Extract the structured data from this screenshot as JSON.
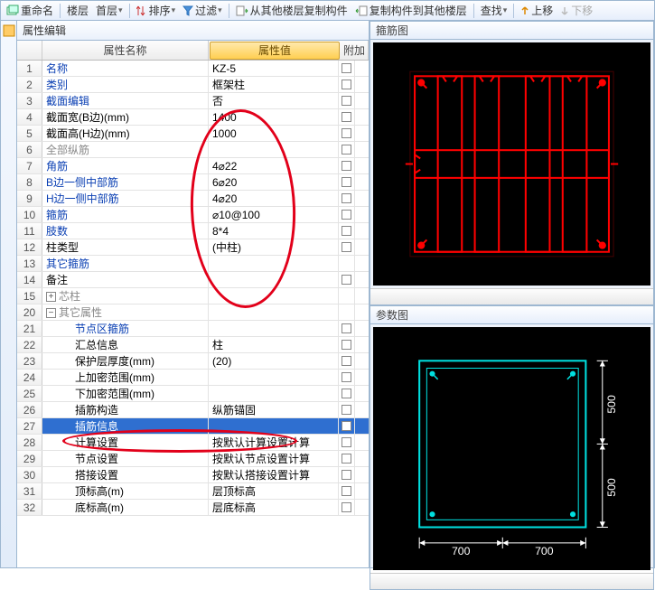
{
  "toolbar": {
    "rename": "重命名",
    "layer": "楼层",
    "firstfloor": "首层",
    "sort": "排序",
    "filter": "过滤",
    "copyfrom": "从其他楼层复制构件",
    "copyto": "复制构件到其他楼层",
    "find": "查找",
    "up": "上移",
    "down": "下移"
  },
  "pane_title": "属性编辑",
  "headers": {
    "name": "属性名称",
    "value": "属性值",
    "extra": "附加"
  },
  "rows": [
    {
      "n": "1",
      "name": "名称",
      "val": "KZ-5",
      "link": true,
      "chk": true
    },
    {
      "n": "2",
      "name": "类别",
      "val": "框架柱",
      "link": true,
      "chk": true
    },
    {
      "n": "3",
      "name": "截面编辑",
      "val": "否",
      "link": true,
      "chk": true
    },
    {
      "n": "4",
      "name": "截面宽(B边)(mm)",
      "val": "1400",
      "chk": true
    },
    {
      "n": "5",
      "name": "截面高(H边)(mm)",
      "val": "1000",
      "chk": true
    },
    {
      "n": "6",
      "name": "全部纵筋",
      "val": "",
      "gray": true,
      "chk": true
    },
    {
      "n": "7",
      "name": "角筋",
      "val": "4⌀22",
      "link": true,
      "chk": true
    },
    {
      "n": "8",
      "name": "B边一侧中部筋",
      "val": "6⌀20",
      "link": true,
      "chk": true
    },
    {
      "n": "9",
      "name": "H边一侧中部筋",
      "val": "4⌀20",
      "link": true,
      "chk": true
    },
    {
      "n": "10",
      "name": "箍筋",
      "val": "⌀10@100",
      "link": true,
      "chk": true
    },
    {
      "n": "11",
      "name": "肢数",
      "val": "8*4",
      "link": true,
      "chk": true
    },
    {
      "n": "12",
      "name": "柱类型",
      "val": "(中柱)",
      "chk": true
    },
    {
      "n": "13",
      "name": "其它箍筋",
      "val": "",
      "link": true,
      "chk": false
    },
    {
      "n": "14",
      "name": "备注",
      "val": "",
      "chk": true
    },
    {
      "n": "15",
      "name": "芯柱",
      "val": "",
      "group": true,
      "expand": "+"
    },
    {
      "n": "20",
      "name": "其它属性",
      "val": "",
      "group": true,
      "expand": "−"
    },
    {
      "n": "21",
      "name": "节点区箍筋",
      "val": "",
      "link": true,
      "indent": 2,
      "chk": true
    },
    {
      "n": "22",
      "name": "汇总信息",
      "val": "柱",
      "indent": 2,
      "chk": true
    },
    {
      "n": "23",
      "name": "保护层厚度(mm)",
      "val": "(20)",
      "indent": 2,
      "chk": true
    },
    {
      "n": "24",
      "name": "上加密范围(mm)",
      "val": "",
      "indent": 2,
      "chk": true
    },
    {
      "n": "25",
      "name": "下加密范围(mm)",
      "val": "",
      "indent": 2,
      "chk": true
    },
    {
      "n": "26",
      "name": "插筋构造",
      "val": "纵筋锚固",
      "indent": 2,
      "chk": true
    },
    {
      "n": "27",
      "name": "插筋信息",
      "val": "",
      "indent": 2,
      "chk": true,
      "sel": true
    },
    {
      "n": "28",
      "name": "计算设置",
      "val": "按默认计算设置计算",
      "indent": 2,
      "chk": true
    },
    {
      "n": "29",
      "name": "节点设置",
      "val": "按默认节点设置计算",
      "indent": 2,
      "chk": true
    },
    {
      "n": "30",
      "name": "搭接设置",
      "val": "按默认搭接设置计算",
      "indent": 2,
      "chk": true
    },
    {
      "n": "31",
      "name": "顶标高(m)",
      "val": "层顶标高",
      "indent": 2,
      "chk": true
    },
    {
      "n": "32",
      "name": "底标高(m)",
      "val": "层底标高",
      "indent": 2,
      "chk": true
    }
  ],
  "fig1_title": "箍筋图",
  "fig2_title": "参数图",
  "fig2_labels": {
    "w": "700",
    "h": "500"
  },
  "colors": {
    "stirrup": "#ff0000",
    "bar": "#ff0000",
    "section": "#00e0e0",
    "dim": "#ffffff",
    "bg": "#000000"
  }
}
